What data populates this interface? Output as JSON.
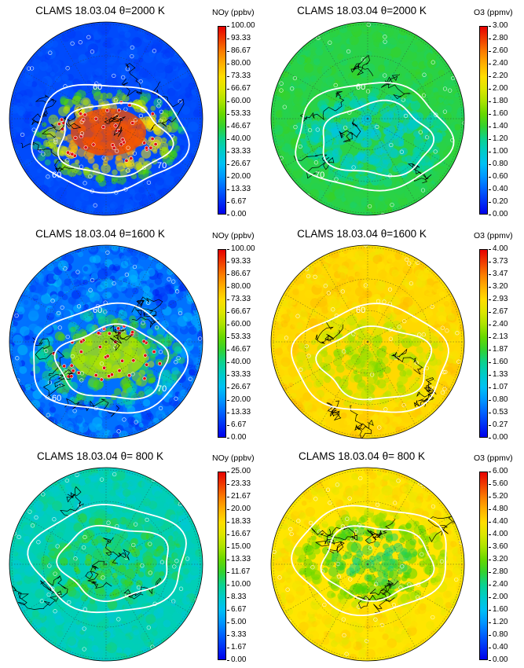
{
  "chart_data": [
    {
      "type": "heatmap",
      "title": "CLAMS 18.03.04  θ=2000 K",
      "species": "NOy",
      "colorbar_title": "NOy (ppbv)",
      "ticks": [
        "100.00",
        "93.33",
        "86.67",
        "80.00",
        "73.33",
        "66.67",
        "60.00",
        "53.33",
        "46.67",
        "40.00",
        "33.33",
        "26.67",
        "20.00",
        "13.33",
        "6.67",
        "0.00"
      ],
      "range": [
        0,
        100
      ],
      "background_level": 0.1,
      "vortex_level": 0.92,
      "noise": 0.03,
      "contour_labels": [
        "60",
        "60",
        "70"
      ]
    },
    {
      "type": "heatmap",
      "title": "CLAMS 18.03.04  θ=2000 K",
      "species": "O3",
      "colorbar_title": "O3 (ppmv)",
      "ticks": [
        "3.00",
        "2.80",
        "2.60",
        "2.40",
        "2.20",
        "2.00",
        "1.80",
        "1.60",
        "1.40",
        "1.20",
        "1.00",
        "0.80",
        "0.60",
        "0.40",
        "0.20",
        "0.00"
      ],
      "range": [
        0,
        3
      ],
      "background_level": 0.45,
      "vortex_level": 0.3,
      "noise": 0.03,
      "contour_labels": [
        "60",
        "70"
      ]
    },
    {
      "type": "heatmap",
      "title": "CLAMS 18.03.04  θ=1600 K",
      "species": "NOy",
      "colorbar_title": "NOy (ppbv)",
      "ticks": [
        "100.00",
        "93.33",
        "86.67",
        "80.00",
        "73.33",
        "66.67",
        "60.00",
        "53.33",
        "46.67",
        "40.00",
        "33.33",
        "26.67",
        "20.00",
        "13.33",
        "6.67",
        "0.00"
      ],
      "range": [
        0,
        100
      ],
      "background_level": 0.15,
      "vortex_level": 0.6,
      "noise": 0.12,
      "contour_labels": [
        "60",
        "60",
        "70"
      ]
    },
    {
      "type": "heatmap",
      "title": "CLAMS 18.03.04  θ=1600 K",
      "species": "O3",
      "colorbar_title": "O3 (ppmv)",
      "ticks": [
        "4.00",
        "3.73",
        "3.47",
        "3.20",
        "2.93",
        "2.67",
        "2.40",
        "2.13",
        "1.87",
        "1.60",
        "1.33",
        "1.07",
        "0.80",
        "0.53",
        "0.27",
        "0.00"
      ],
      "range": [
        0,
        4
      ],
      "background_level": 0.74,
      "vortex_level": 0.58,
      "noise": 0.05,
      "contour_labels": [
        "60"
      ]
    },
    {
      "type": "heatmap",
      "title": "CLAMS 18.03.04  θ= 800 K",
      "species": "NOy",
      "colorbar_title": "NOy (ppbv)",
      "ticks": [
        "25.00",
        "23.33",
        "21.67",
        "20.00",
        "18.33",
        "16.67",
        "15.00",
        "13.33",
        "11.67",
        "10.00",
        "8.33",
        "6.67",
        "5.00",
        "3.33",
        "1.67",
        "0.00"
      ],
      "range": [
        0,
        25
      ],
      "background_level": 0.36,
      "vortex_level": 0.48,
      "noise": 0.06,
      "contour_labels": []
    },
    {
      "type": "heatmap",
      "title": "CLAMS 18.03.04  θ= 800 K",
      "species": "O3",
      "colorbar_title": "O3 (ppmv)",
      "ticks": [
        "6.00",
        "5.60",
        "5.20",
        "4.80",
        "4.40",
        "4.00",
        "3.60",
        "3.20",
        "2.80",
        "2.40",
        "2.00",
        "1.60",
        "1.20",
        "0.80",
        "0.40",
        "0.00"
      ],
      "range": [
        0,
        6
      ],
      "background_level": 0.72,
      "vortex_level": 0.42,
      "noise": 0.05,
      "contour_labels": []
    }
  ]
}
